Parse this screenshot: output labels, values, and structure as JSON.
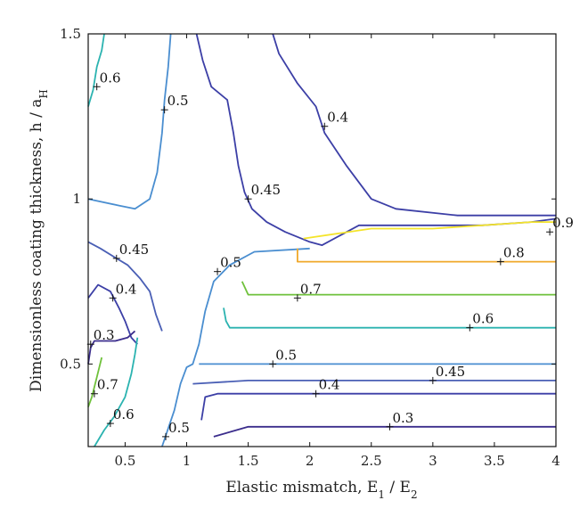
{
  "chart_data": {
    "type": "contour",
    "xlabel": "Elastic mismatch, E",
    "xlabel_sub1": "1",
    "xlabel_mid": " / E",
    "xlabel_sub2": "2",
    "ylabel": "Dimensionless coating thickness, h / a",
    "ylabel_sub": "H",
    "xlim": [
      0.2,
      4
    ],
    "ylim": [
      0.25,
      1.5
    ],
    "x_ticks": [
      0.5,
      1,
      1.5,
      2,
      2.5,
      3,
      3.5,
      4
    ],
    "x_tick_labels": [
      "0.5",
      "1",
      "1.5",
      "2",
      "2.5",
      "3",
      "3.5",
      "4"
    ],
    "y_ticks": [
      0.5,
      1,
      1.5
    ],
    "y_tick_labels": [
      "0.5",
      "1",
      "1.5"
    ],
    "colors": {
      "0.3": "#3b2d8c",
      "0.4": "#3c3fa6",
      "0.45": "#4a5fb5",
      "0.5": "#4a8ed0",
      "0.6": "#2bb3b0",
      "0.7": "#6fc13b",
      "0.8": "#f0a82a",
      "0.9": "#f4e42a"
    },
    "contours": [
      {
        "level": 0.6,
        "points": [
          [
            0.2,
            1.28
          ],
          [
            0.24,
            1.33
          ],
          [
            0.27,
            1.4
          ],
          [
            0.31,
            1.45
          ],
          [
            0.33,
            1.5
          ]
        ]
      },
      {
        "level": 0.5,
        "points": [
          [
            0.2,
            1.0
          ],
          [
            0.45,
            0.98
          ],
          [
            0.58,
            0.97
          ],
          [
            0.7,
            1.0
          ],
          [
            0.76,
            1.08
          ],
          [
            0.8,
            1.2
          ],
          [
            0.82,
            1.3
          ],
          [
            0.85,
            1.4
          ],
          [
            0.87,
            1.5
          ]
        ]
      },
      {
        "level": 0.4,
        "points": [
          [
            1.08,
            1.5
          ],
          [
            1.13,
            1.42
          ],
          [
            1.2,
            1.34
          ],
          [
            1.33,
            1.3
          ],
          [
            1.38,
            1.2
          ],
          [
            1.42,
            1.1
          ],
          [
            1.47,
            1.02
          ],
          [
            1.53,
            0.97
          ],
          [
            1.65,
            0.93
          ],
          [
            1.8,
            0.9
          ],
          [
            2.0,
            0.87
          ],
          [
            2.1,
            0.86
          ],
          [
            2.25,
            0.89
          ],
          [
            2.4,
            0.92
          ],
          [
            3.0,
            0.92
          ],
          [
            3.4,
            0.92
          ],
          [
            3.8,
            0.93
          ],
          [
            4.0,
            0.94
          ]
        ]
      },
      {
        "level": 0.4,
        "points": [
          [
            1.7,
            1.5
          ],
          [
            1.75,
            1.44
          ],
          [
            1.9,
            1.35
          ],
          [
            2.05,
            1.28
          ],
          [
            2.12,
            1.2
          ],
          [
            2.3,
            1.1
          ],
          [
            2.5,
            1.0
          ],
          [
            2.7,
            0.97
          ],
          [
            3.2,
            0.95
          ],
          [
            3.8,
            0.95
          ],
          [
            4.0,
            0.95
          ]
        ]
      },
      {
        "level": 0.45,
        "points": [
          [
            0.2,
            0.87
          ],
          [
            0.3,
            0.85
          ],
          [
            0.43,
            0.82
          ],
          [
            0.52,
            0.8
          ],
          [
            0.62,
            0.76
          ],
          [
            0.7,
            0.72
          ],
          [
            0.75,
            0.65
          ],
          [
            0.8,
            0.6
          ]
        ]
      },
      {
        "level": 0.4,
        "points": [
          [
            0.2,
            0.7
          ],
          [
            0.28,
            0.74
          ],
          [
            0.38,
            0.72
          ],
          [
            0.45,
            0.67
          ],
          [
            0.5,
            0.63
          ],
          [
            0.55,
            0.58
          ],
          [
            0.6,
            0.56
          ]
        ]
      },
      {
        "level": 0.3,
        "points": [
          [
            0.2,
            0.5
          ],
          [
            0.22,
            0.55
          ],
          [
            0.25,
            0.57
          ],
          [
            0.33,
            0.57
          ],
          [
            0.42,
            0.57
          ],
          [
            0.52,
            0.58
          ],
          [
            0.58,
            0.6
          ]
        ]
      },
      {
        "level": 0.7,
        "points": [
          [
            0.2,
            0.37
          ],
          [
            0.23,
            0.4
          ],
          [
            0.27,
            0.46
          ],
          [
            0.31,
            0.52
          ]
        ]
      },
      {
        "level": 0.6,
        "points": [
          [
            0.25,
            0.25
          ],
          [
            0.33,
            0.3
          ],
          [
            0.41,
            0.34
          ],
          [
            0.5,
            0.4
          ],
          [
            0.55,
            0.47
          ],
          [
            0.58,
            0.53
          ],
          [
            0.6,
            0.58
          ]
        ]
      },
      {
        "level": 0.5,
        "points": [
          [
            0.8,
            0.25
          ],
          [
            0.9,
            0.36
          ],
          [
            0.95,
            0.44
          ],
          [
            1.0,
            0.49
          ],
          [
            1.05,
            0.5
          ],
          [
            1.1,
            0.56
          ],
          [
            1.15,
            0.66
          ],
          [
            1.22,
            0.75
          ],
          [
            1.35,
            0.8
          ],
          [
            1.55,
            0.84
          ],
          [
            2.0,
            0.85
          ]
        ]
      },
      {
        "level": 0.5,
        "points": [
          [
            1.1,
            0.5
          ],
          [
            2.0,
            0.5
          ],
          [
            3.0,
            0.5
          ],
          [
            4.0,
            0.5
          ]
        ]
      },
      {
        "level": 0.45,
        "points": [
          [
            1.05,
            0.44
          ],
          [
            1.5,
            0.45
          ],
          [
            3.0,
            0.45
          ],
          [
            4.0,
            0.45
          ]
        ]
      },
      {
        "level": 0.4,
        "points": [
          [
            1.12,
            0.33
          ],
          [
            1.15,
            0.4
          ],
          [
            1.25,
            0.41
          ],
          [
            3.0,
            0.41
          ],
          [
            4.0,
            0.41
          ]
        ]
      },
      {
        "level": 0.3,
        "points": [
          [
            1.22,
            0.28
          ],
          [
            1.5,
            0.31
          ],
          [
            3.0,
            0.31
          ],
          [
            4.0,
            0.31
          ]
        ]
      },
      {
        "level": 0.6,
        "points": [
          [
            1.3,
            0.67
          ],
          [
            1.32,
            0.63
          ],
          [
            1.35,
            0.61
          ],
          [
            2.0,
            0.61
          ],
          [
            3.5,
            0.61
          ],
          [
            4.0,
            0.61
          ]
        ]
      },
      {
        "level": 0.7,
        "points": [
          [
            1.45,
            0.75
          ],
          [
            1.5,
            0.71
          ],
          [
            2.0,
            0.71
          ],
          [
            3.5,
            0.71
          ],
          [
            4.0,
            0.71
          ]
        ]
      },
      {
        "level": 0.8,
        "points": [
          [
            1.9,
            0.85
          ],
          [
            1.9,
            0.81
          ],
          [
            3.0,
            0.81
          ],
          [
            4.0,
            0.81
          ]
        ]
      },
      {
        "level": 0.9,
        "points": [
          [
            1.95,
            0.88
          ],
          [
            2.5,
            0.91
          ],
          [
            3.0,
            0.91
          ],
          [
            3.8,
            0.93
          ],
          [
            4.0,
            0.93
          ]
        ]
      }
    ],
    "labels": [
      {
        "text": "0.6",
        "x": 0.27,
        "y": 1.34
      },
      {
        "text": "0.5",
        "x": 0.82,
        "y": 1.27
      },
      {
        "text": "0.4",
        "x": 2.12,
        "y": 1.22
      },
      {
        "text": "0.45",
        "x": 1.5,
        "y": 1.0
      },
      {
        "text": "0.9",
        "x": 3.95,
        "y": 0.9
      },
      {
        "text": "0.8",
        "x": 3.55,
        "y": 0.81
      },
      {
        "text": "0.45",
        "x": 0.43,
        "y": 0.82
      },
      {
        "text": "0.5",
        "x": 1.25,
        "y": 0.78
      },
      {
        "text": "0.4",
        "x": 0.4,
        "y": 0.7
      },
      {
        "text": "0.7",
        "x": 1.9,
        "y": 0.7
      },
      {
        "text": "0.6",
        "x": 3.3,
        "y": 0.61
      },
      {
        "text": "0.3",
        "x": 0.22,
        "y": 0.56
      },
      {
        "text": "0.5",
        "x": 1.7,
        "y": 0.5
      },
      {
        "text": "0.45",
        "x": 3.0,
        "y": 0.45
      },
      {
        "text": "0.4",
        "x": 2.05,
        "y": 0.41
      },
      {
        "text": "0.7",
        "x": 0.25,
        "y": 0.41
      },
      {
        "text": "0.3",
        "x": 2.65,
        "y": 0.31
      },
      {
        "text": "0.6",
        "x": 0.38,
        "y": 0.32
      },
      {
        "text": "0.5",
        "x": 0.83,
        "y": 0.28
      }
    ]
  }
}
